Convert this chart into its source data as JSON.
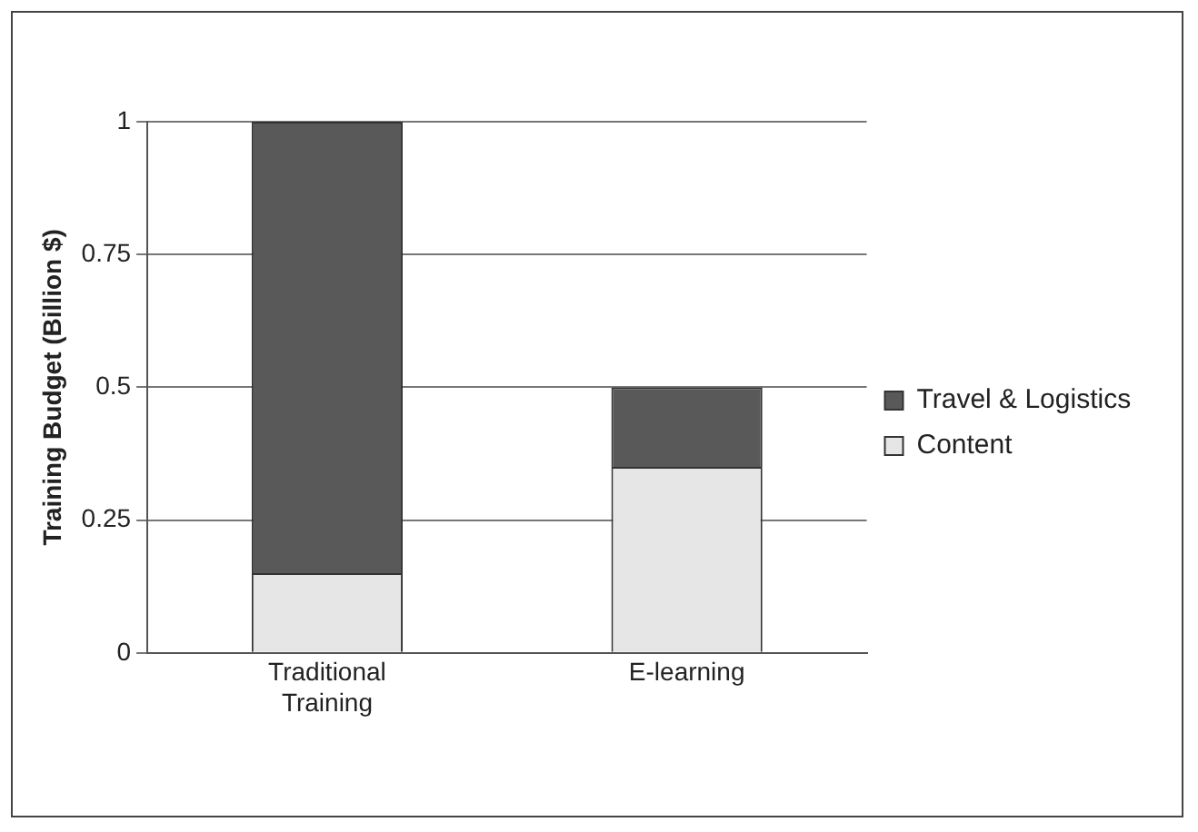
{
  "chart_data": {
    "type": "bar",
    "ylabel": "Training Budget (Billion $)",
    "categories": [
      "Traditional Training",
      "E-learning"
    ],
    "stacked": true,
    "series": [
      {
        "name": "Content",
        "color": "#e6e6e6",
        "values": [
          0.15,
          0.35
        ]
      },
      {
        "name": "Travel & Logistics",
        "color": "#595959",
        "values": [
          0.85,
          0.15
        ]
      }
    ],
    "ylim": [
      0,
      1
    ],
    "yticks": [
      0,
      0.25,
      0.5,
      0.75,
      1
    ],
    "grid": "y",
    "legend": "right"
  }
}
